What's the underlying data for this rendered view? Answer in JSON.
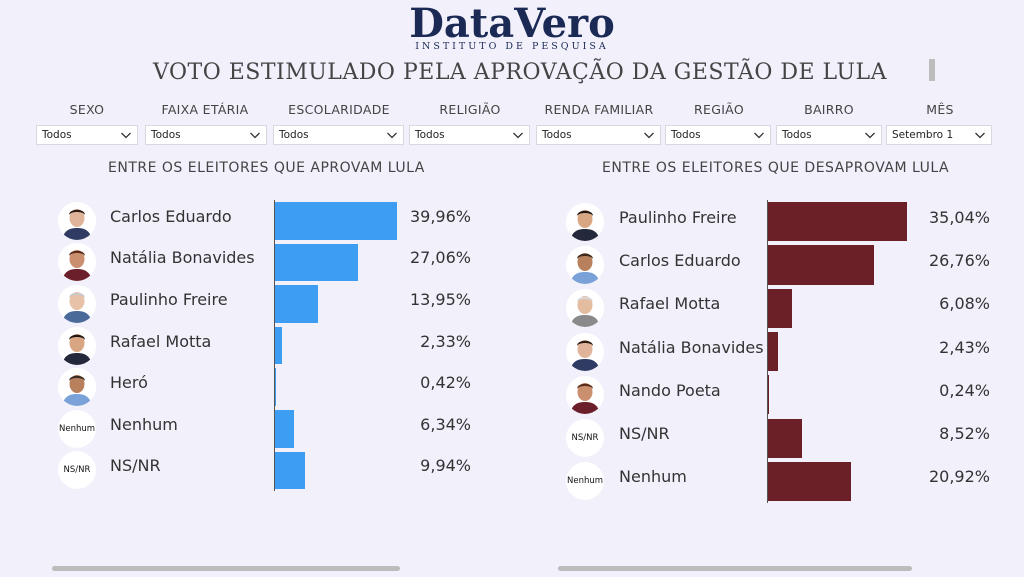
{
  "logo": {
    "main": "DataVero",
    "sub": "INSTITUTO DE PESQUISA"
  },
  "page_title": "VOTO ESTIMULADO PELA APROVAÇÃO DA GESTÃO DE LULA",
  "filters": [
    {
      "label": "SEXO",
      "value": "Todos"
    },
    {
      "label": "FAIXA ETÁRIA",
      "value": "Todos"
    },
    {
      "label": "ESCOLARIDADE",
      "value": "Todos"
    },
    {
      "label": "RELIGIÃO",
      "value": "Todos"
    },
    {
      "label": "RENDA FAMILIAR",
      "value": "Todos"
    },
    {
      "label": "REGIÃO",
      "value": "Todos"
    },
    {
      "label": "BAIRRO",
      "value": "Todos"
    },
    {
      "label": "MÊS",
      "value": "Setembro 1"
    }
  ],
  "colors": {
    "approve": "#3d9df3",
    "disapprove": "#6b2027",
    "background": "#f1f0fb"
  },
  "chart_data": [
    {
      "type": "bar",
      "orientation": "horizontal",
      "title": "ENTRE OS ELEITORES QUE APROVAM LULA",
      "categories": [
        "Carlos Eduardo",
        "Natália Bonavides",
        "Paulinho Freire",
        "Rafael Motta",
        "Heró",
        "Nenhum",
        "NS/NR"
      ],
      "values": [
        39.96,
        27.06,
        13.95,
        2.33,
        0.42,
        6.34,
        9.94
      ],
      "value_labels": [
        "39,96%",
        "27,06%",
        "13,95%",
        "2,33%",
        "0,42%",
        "6,34%",
        "9,94%"
      ],
      "avatars": [
        "photo",
        "photo",
        "photo",
        "photo",
        "photo",
        "Nenhum",
        "NS/NR"
      ],
      "xlim": [
        0,
        40
      ]
    },
    {
      "type": "bar",
      "orientation": "horizontal",
      "title": "ENTRE OS ELEITORES QUE DESAPROVAM LULA",
      "categories": [
        "Paulinho Freire",
        "Carlos Eduardo",
        "Rafael Motta",
        "Natália Bonavides",
        "Nando Poeta",
        "NS/NR",
        "Nenhum"
      ],
      "values": [
        35.04,
        26.76,
        6.08,
        2.43,
        0.24,
        8.52,
        20.92
      ],
      "value_labels": [
        "35,04%",
        "26,76%",
        "6,08%",
        "2,43%",
        "0,24%",
        "8,52%",
        "20,92%"
      ],
      "avatars": [
        "photo",
        "photo",
        "photo",
        "photo",
        "photo",
        "NS/NR",
        "Nenhum"
      ],
      "xlim": [
        0,
        35.8
      ]
    }
  ]
}
